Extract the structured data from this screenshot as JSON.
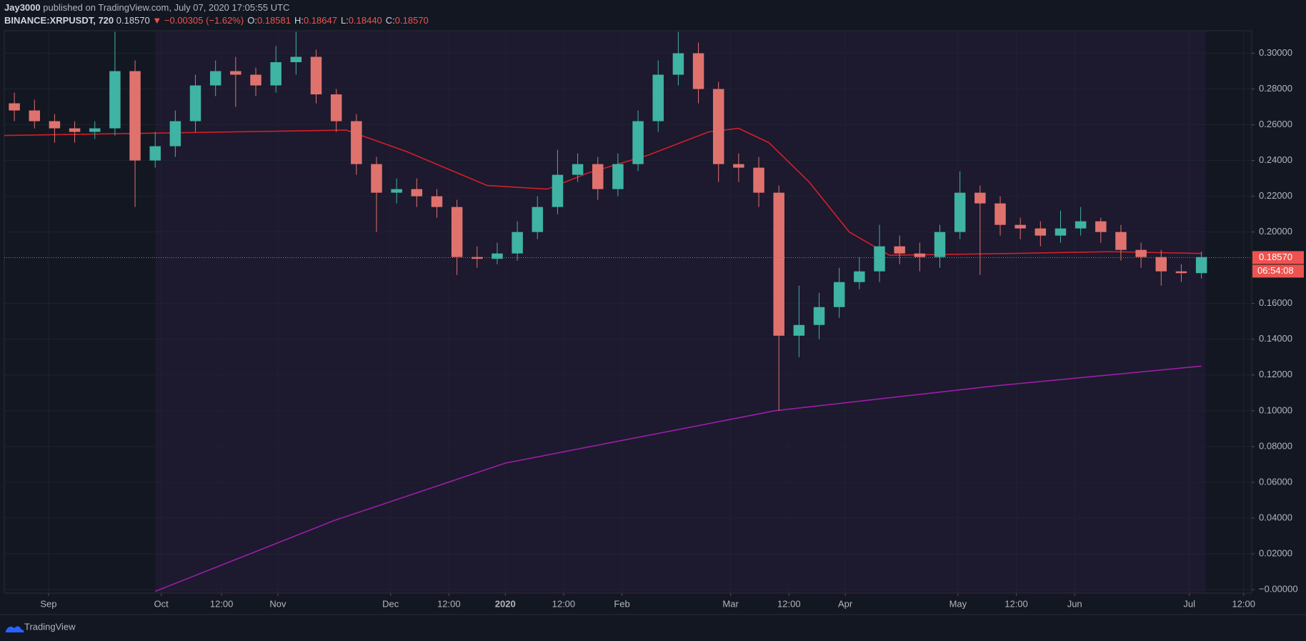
{
  "chart_data": {
    "type": "candlestick",
    "publisher": "Jay3000",
    "published_line": "published on TradingView.com, July 07, 2020 17:05:55 UTC",
    "symbol": "BINANCE:XRPUSDT, 720",
    "last": "0.18570",
    "change": "▼ −0.00305 (−1.62%)",
    "ohlc_labels": [
      {
        "label": "O:",
        "value": "0.18581"
      },
      {
        "label": "H:",
        "value": "0.18647"
      },
      {
        "label": "L:",
        "value": "0.18440"
      },
      {
        "label": "C:",
        "value": "0.18570"
      }
    ],
    "brand": "TradingView",
    "up_color": "#3fb3a4",
    "down_color": "#e0726e",
    "grid": true,
    "xlim": [
      0,
      62
    ],
    "ylim": [
      -0.002,
      0.3126
    ],
    "xticks": [
      {
        "value": 2.2,
        "label": "Sep"
      },
      {
        "value": 7.8,
        "label": "Oct"
      },
      {
        "value": 10.8,
        "label": "12:00"
      },
      {
        "value": 13.6,
        "label": "Nov"
      },
      {
        "value": 19.2,
        "label": "Dec"
      },
      {
        "value": 22.1,
        "label": "12:00"
      },
      {
        "value": 24.9,
        "label": "2020"
      },
      {
        "value": 27.8,
        "label": "12:00"
      },
      {
        "value": 30.7,
        "label": "Feb"
      },
      {
        "value": 36.1,
        "label": "Mar"
      },
      {
        "value": 39.0,
        "label": "12:00"
      },
      {
        "value": 41.8,
        "label": "Apr"
      },
      {
        "value": 47.4,
        "label": "May"
      },
      {
        "value": 50.3,
        "label": "12:00"
      },
      {
        "value": 53.2,
        "label": "Jun"
      },
      {
        "value": 58.9,
        "label": "Jul"
      },
      {
        "value": 61.6,
        "label": "12:00"
      }
    ],
    "yticks": [
      {
        "value": 0.3,
        "label": "0.30000"
      },
      {
        "value": 0.28,
        "label": "0.28000"
      },
      {
        "value": 0.26,
        "label": "0.26000"
      },
      {
        "value": 0.24,
        "label": "0.24000"
      },
      {
        "value": 0.22,
        "label": "0.22000"
      },
      {
        "value": 0.2,
        "label": "0.20000"
      },
      {
        "value": 0.16,
        "label": "0.16000"
      },
      {
        "value": 0.14,
        "label": "0.14000"
      },
      {
        "value": 0.12,
        "label": "0.12000"
      },
      {
        "value": 0.1,
        "label": "0.10000"
      },
      {
        "value": 0.08,
        "label": "0.08000"
      },
      {
        "value": 0.06,
        "label": "0.06000"
      },
      {
        "value": 0.04,
        "label": "0.04000"
      },
      {
        "value": 0.02,
        "label": "0.02000"
      },
      {
        "value": 0,
        "label": "−0.00000"
      }
    ],
    "last_price": {
      "value": 0.1857,
      "label": "0.18570"
    },
    "countdown": "06:54:08",
    "open": [
      0.272,
      0.268,
      0.262,
      0.258,
      0.256,
      0.258,
      0.29,
      0.24,
      0.248,
      0.262,
      0.282,
      0.29,
      0.288,
      0.282,
      0.295,
      0.298,
      0.277,
      0.262,
      0.238,
      0.222,
      0.224,
      0.22,
      0.214,
      0.186,
      0.185,
      0.188,
      0.2,
      0.214,
      0.232,
      0.238,
      0.224,
      0.238,
      0.262,
      0.288,
      0.3,
      0.28,
      0.238,
      0.236,
      0.222,
      0.142,
      0.148,
      0.158,
      0.172,
      0.178,
      0.192,
      0.188,
      0.186,
      0.2,
      0.222,
      0.216,
      0.204,
      0.202,
      0.198,
      0.202,
      0.206,
      0.2,
      0.19,
      0.186,
      0.178,
      0.177
    ],
    "high": [
      0.278,
      0.274,
      0.266,
      0.262,
      0.262,
      0.312,
      0.296,
      0.256,
      0.268,
      0.288,
      0.296,
      0.298,
      0.292,
      0.304,
      0.312,
      0.302,
      0.28,
      0.266,
      0.242,
      0.23,
      0.23,
      0.224,
      0.218,
      0.192,
      0.194,
      0.206,
      0.22,
      0.246,
      0.244,
      0.242,
      0.244,
      0.268,
      0.296,
      0.312,
      0.306,
      0.284,
      0.244,
      0.242,
      0.226,
      0.17,
      0.166,
      0.18,
      0.186,
      0.204,
      0.198,
      0.194,
      0.204,
      0.234,
      0.226,
      0.22,
      0.208,
      0.206,
      0.212,
      0.214,
      0.208,
      0.204,
      0.194,
      0.19,
      0.182,
      0.189
    ],
    "low": [
      0.262,
      0.258,
      0.25,
      0.25,
      0.252,
      0.254,
      0.214,
      0.236,
      0.242,
      0.256,
      0.276,
      0.27,
      0.276,
      0.278,
      0.288,
      0.272,
      0.256,
      0.232,
      0.2,
      0.216,
      0.214,
      0.208,
      0.176,
      0.18,
      0.182,
      0.184,
      0.196,
      0.21,
      0.228,
      0.218,
      0.22,
      0.234,
      0.256,
      0.282,
      0.272,
      0.228,
      0.228,
      0.214,
      0.1,
      0.13,
      0.14,
      0.152,
      0.168,
      0.172,
      0.182,
      0.178,
      0.18,
      0.196,
      0.176,
      0.198,
      0.196,
      0.192,
      0.194,
      0.198,
      0.194,
      0.184,
      0.18,
      0.17,
      0.172,
      0.174
    ],
    "close": [
      0.268,
      0.262,
      0.258,
      0.256,
      0.258,
      0.29,
      0.24,
      0.248,
      0.262,
      0.282,
      0.29,
      0.288,
      0.282,
      0.295,
      0.298,
      0.277,
      0.262,
      0.238,
      0.222,
      0.224,
      0.22,
      0.214,
      0.186,
      0.185,
      0.188,
      0.2,
      0.214,
      0.232,
      0.238,
      0.224,
      0.238,
      0.262,
      0.288,
      0.3,
      0.28,
      0.238,
      0.236,
      0.222,
      0.142,
      0.148,
      0.158,
      0.172,
      0.178,
      0.192,
      0.188,
      0.186,
      0.2,
      0.222,
      0.216,
      0.204,
      0.202,
      0.198,
      0.202,
      0.206,
      0.2,
      0.19,
      0.186,
      0.178,
      0.177,
      0.186
    ],
    "lines": [
      {
        "color": "#d0202a",
        "x": [
          0,
          17,
          20,
          24,
          27,
          29,
          32,
          35,
          36.5,
          38,
          40,
          42,
          44,
          50,
          55,
          59.5
        ],
        "values": [
          0.254,
          0.257,
          0.245,
          0.226,
          0.224,
          0.233,
          0.243,
          0.256,
          0.258,
          0.25,
          0.228,
          0.2,
          0.187,
          0.188,
          0.189,
          0.188
        ]
      },
      {
        "color": "#9a1fa8",
        "x": [
          7.5,
          16.4,
          24.9,
          38.3,
          49.3,
          59.5
        ],
        "values": [
          -0.001,
          0.0386,
          0.0707,
          0.1,
          0.114,
          0.125
        ]
      }
    ]
  }
}
